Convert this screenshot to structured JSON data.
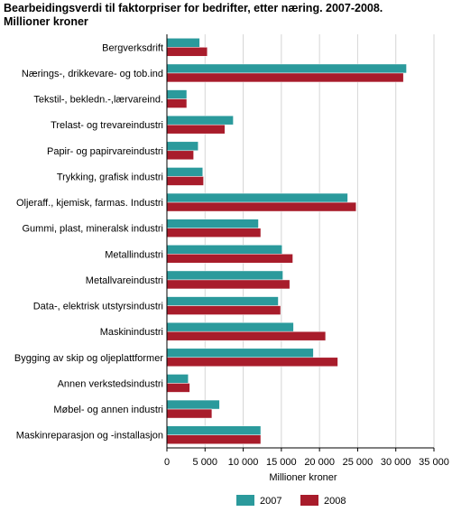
{
  "title_line1": "Bearbeidingsverdi til faktorpriser for bedrifter, etter næring. 2007-2008.",
  "title_line2": "Millioner kroner",
  "chart_data": {
    "type": "bar",
    "orientation": "horizontal",
    "categories": [
      "Bergverksdrift",
      "Nærings-, drikkevare- og tob.ind",
      "Tekstil-, bekledn.-,lærvareind.",
      "Trelast- og trevareindustri",
      "Papir- og papirvareindustri",
      "Trykking, grafisk industri",
      "Oljeraff., kjemisk, farmas. Industri",
      "Gummi, plast, mineralsk industri",
      "Metallindustri",
      "Metallvareindustri",
      "Data-, elektrisk utstyrsindustri",
      "Maskinindustri",
      "Bygging av skip og oljeplattformer",
      "Annen verkstedsindustri",
      "Møbel- og annen industri",
      "Maskinreparasjon og -installasjon"
    ],
    "series": [
      {
        "name": "2007",
        "color": "#2b9a9c",
        "values": [
          4300,
          31400,
          2600,
          8700,
          4100,
          4700,
          23700,
          12000,
          15100,
          15200,
          14600,
          16600,
          19200,
          2800,
          6900,
          12300
        ]
      },
      {
        "name": "2008",
        "color": "#a81c2b",
        "values": [
          5300,
          31000,
          2600,
          7600,
          3500,
          4800,
          24800,
          12300,
          16500,
          16100,
          14900,
          20800,
          22400,
          3000,
          5900,
          12300
        ]
      }
    ],
    "xlabel": "Millioner kroner",
    "xlim": [
      0,
      35000
    ],
    "xticks": [
      0,
      5000,
      10000,
      15000,
      20000,
      25000,
      30000,
      35000
    ],
    "xtick_labels": [
      "0",
      "5 000",
      "10 000",
      "15 000",
      "20 000",
      "25 000",
      "30 000",
      "35 000"
    ],
    "grid": "vertical",
    "legend_position": "bottom"
  }
}
